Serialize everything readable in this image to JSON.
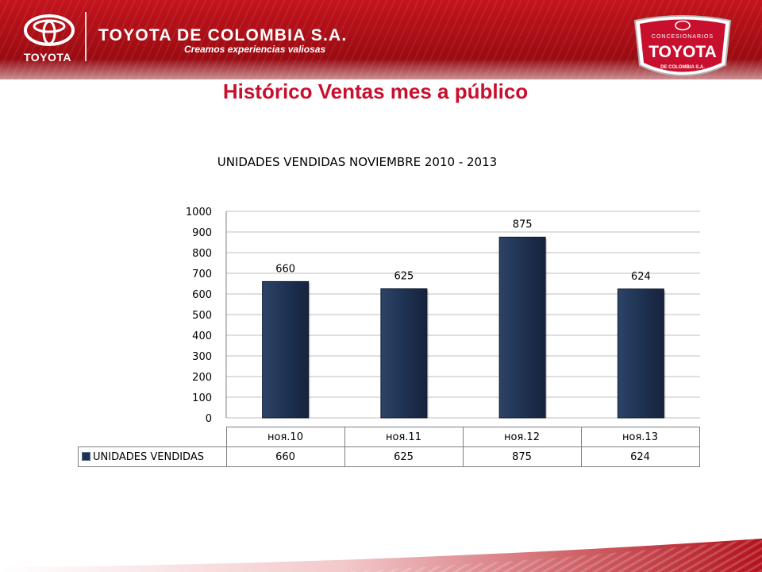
{
  "header": {
    "logo_wordmark": "TOYOTA",
    "company_name": "TOYOTA DE COLOMBIA S.A.",
    "slogan": "Creamos experiencias valiosas",
    "badge": {
      "top_text": "CONCESIONARIOS",
      "main_text": "TOYOTA",
      "bottom_text": "DE COLOMBIA S.A."
    }
  },
  "slide_title": "Histórico Ventas mes a público",
  "colors": {
    "brand_red": "#c8102e",
    "bar_fill": "#1f3252",
    "gridline": "#bfbfbf"
  },
  "chart_data": {
    "type": "bar",
    "title": "UNIDADES VENDIDAS NOVIEMBRE 2010 - 2013",
    "categories": [
      "ноя.10",
      "ноя.11",
      "ноя.12",
      "ноя.13"
    ],
    "series": [
      {
        "name": "UNIDADES VENDIDAS",
        "values": [
          660,
          625,
          875,
          624
        ]
      }
    ],
    "ylim": [
      0,
      1000
    ],
    "yticks": [
      "0",
      "100",
      "200",
      "300",
      "400",
      "500",
      "600",
      "700",
      "800",
      "900",
      "1000"
    ],
    "data_labels": [
      "660",
      "625",
      "875",
      "624"
    ],
    "grid": true,
    "legend": "data-table-bottom"
  }
}
